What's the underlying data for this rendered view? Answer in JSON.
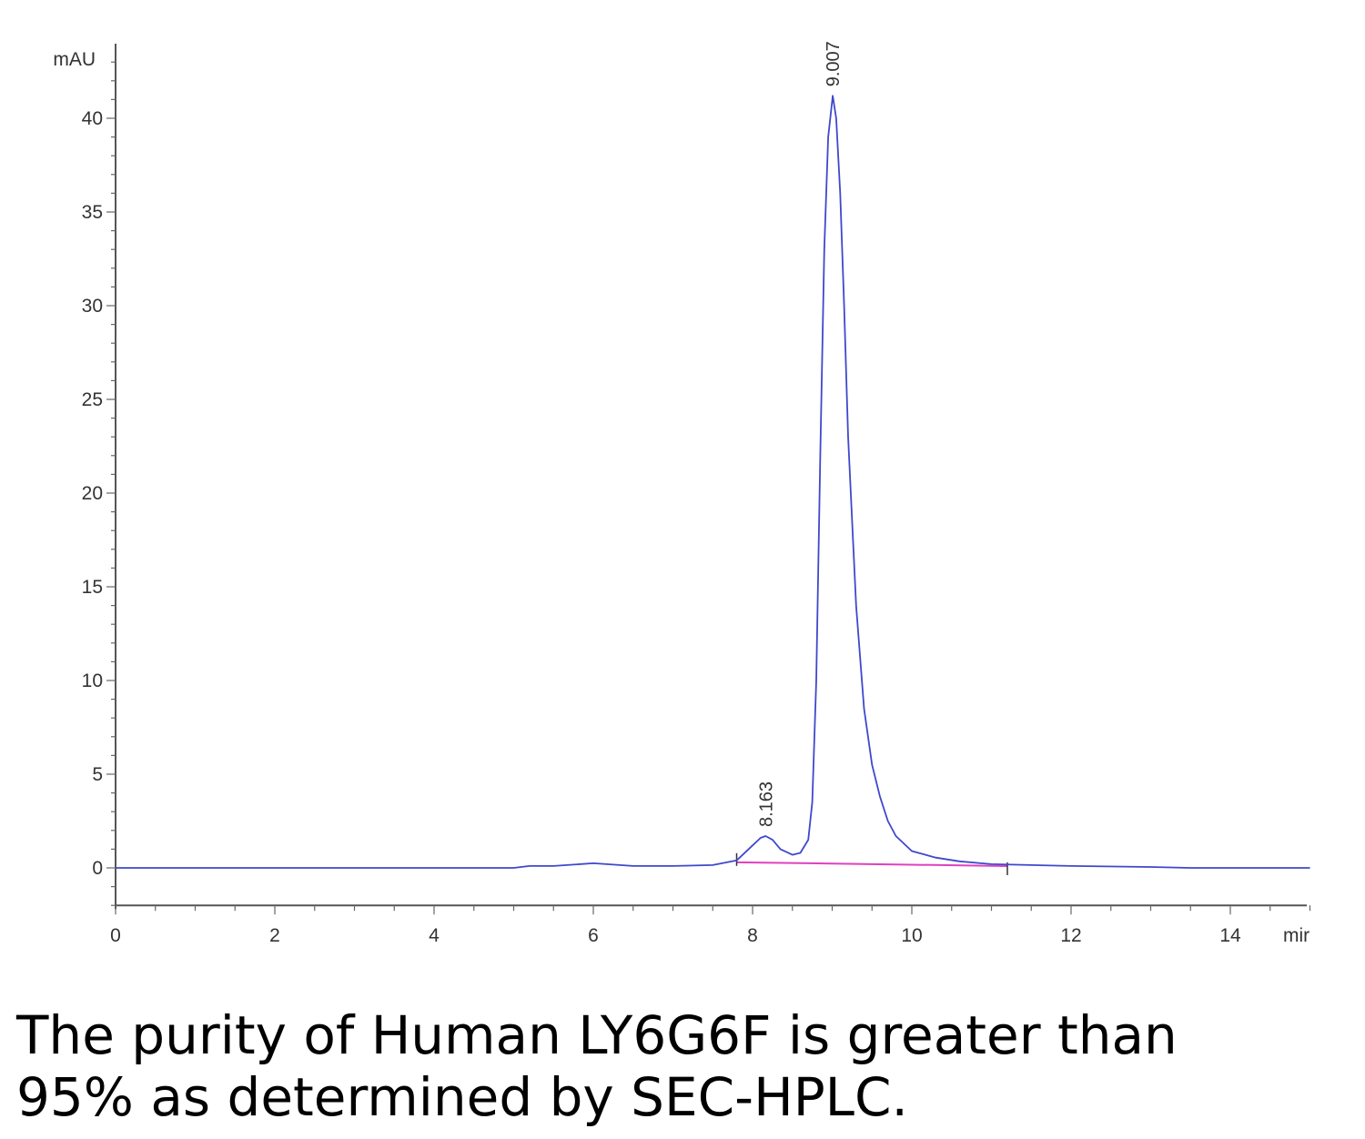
{
  "chart_data": {
    "type": "line",
    "ylabel": "mAU",
    "xlabel": "mir",
    "xlim": [
      0,
      15
    ],
    "ylim": [
      -2,
      43
    ],
    "x_ticks": [
      0,
      2,
      4,
      6,
      8,
      10,
      12,
      14
    ],
    "y_ticks": [
      0,
      5,
      10,
      15,
      20,
      25,
      30,
      35,
      40
    ],
    "grid": false,
    "peak_labels": [
      {
        "x": 8.163,
        "y": 1.7,
        "label": "8.163"
      },
      {
        "x": 9.007,
        "y": 41.2,
        "label": "9.007"
      }
    ],
    "baseline": {
      "x": [
        7.8,
        11.2
      ],
      "y": [
        0.3,
        0.1
      ]
    },
    "series": [
      {
        "color": "#3f48cc",
        "x": [
          0,
          1,
          2,
          3,
          4,
          5,
          5.2,
          5.5,
          6.0,
          6.5,
          7.0,
          7.5,
          7.8,
          8.0,
          8.1,
          8.163,
          8.25,
          8.35,
          8.5,
          8.6,
          8.7,
          8.75,
          8.8,
          8.85,
          8.9,
          8.95,
          9.007,
          9.05,
          9.1,
          9.15,
          9.2,
          9.3,
          9.4,
          9.5,
          9.6,
          9.7,
          9.8,
          10.0,
          10.3,
          10.6,
          11.0,
          11.5,
          12.0,
          13.0,
          13.5,
          14.0,
          15.0
        ],
        "y": [
          0,
          0,
          0,
          0,
          0,
          0,
          0.1,
          0.1,
          0.25,
          0.1,
          0.1,
          0.15,
          0.4,
          1.2,
          1.6,
          1.7,
          1.5,
          1.0,
          0.7,
          0.8,
          1.5,
          3.5,
          10,
          22,
          33,
          39,
          41.2,
          40,
          36,
          30,
          23,
          14,
          8.5,
          5.5,
          3.8,
          2.5,
          1.7,
          0.9,
          0.55,
          0.35,
          0.2,
          0.15,
          0.1,
          0.05,
          0,
          0,
          0
        ]
      }
    ]
  },
  "caption": {
    "line1": "The purity of Human LY6G6F is greater than",
    "line2": "95% as determined by SEC-HPLC."
  }
}
